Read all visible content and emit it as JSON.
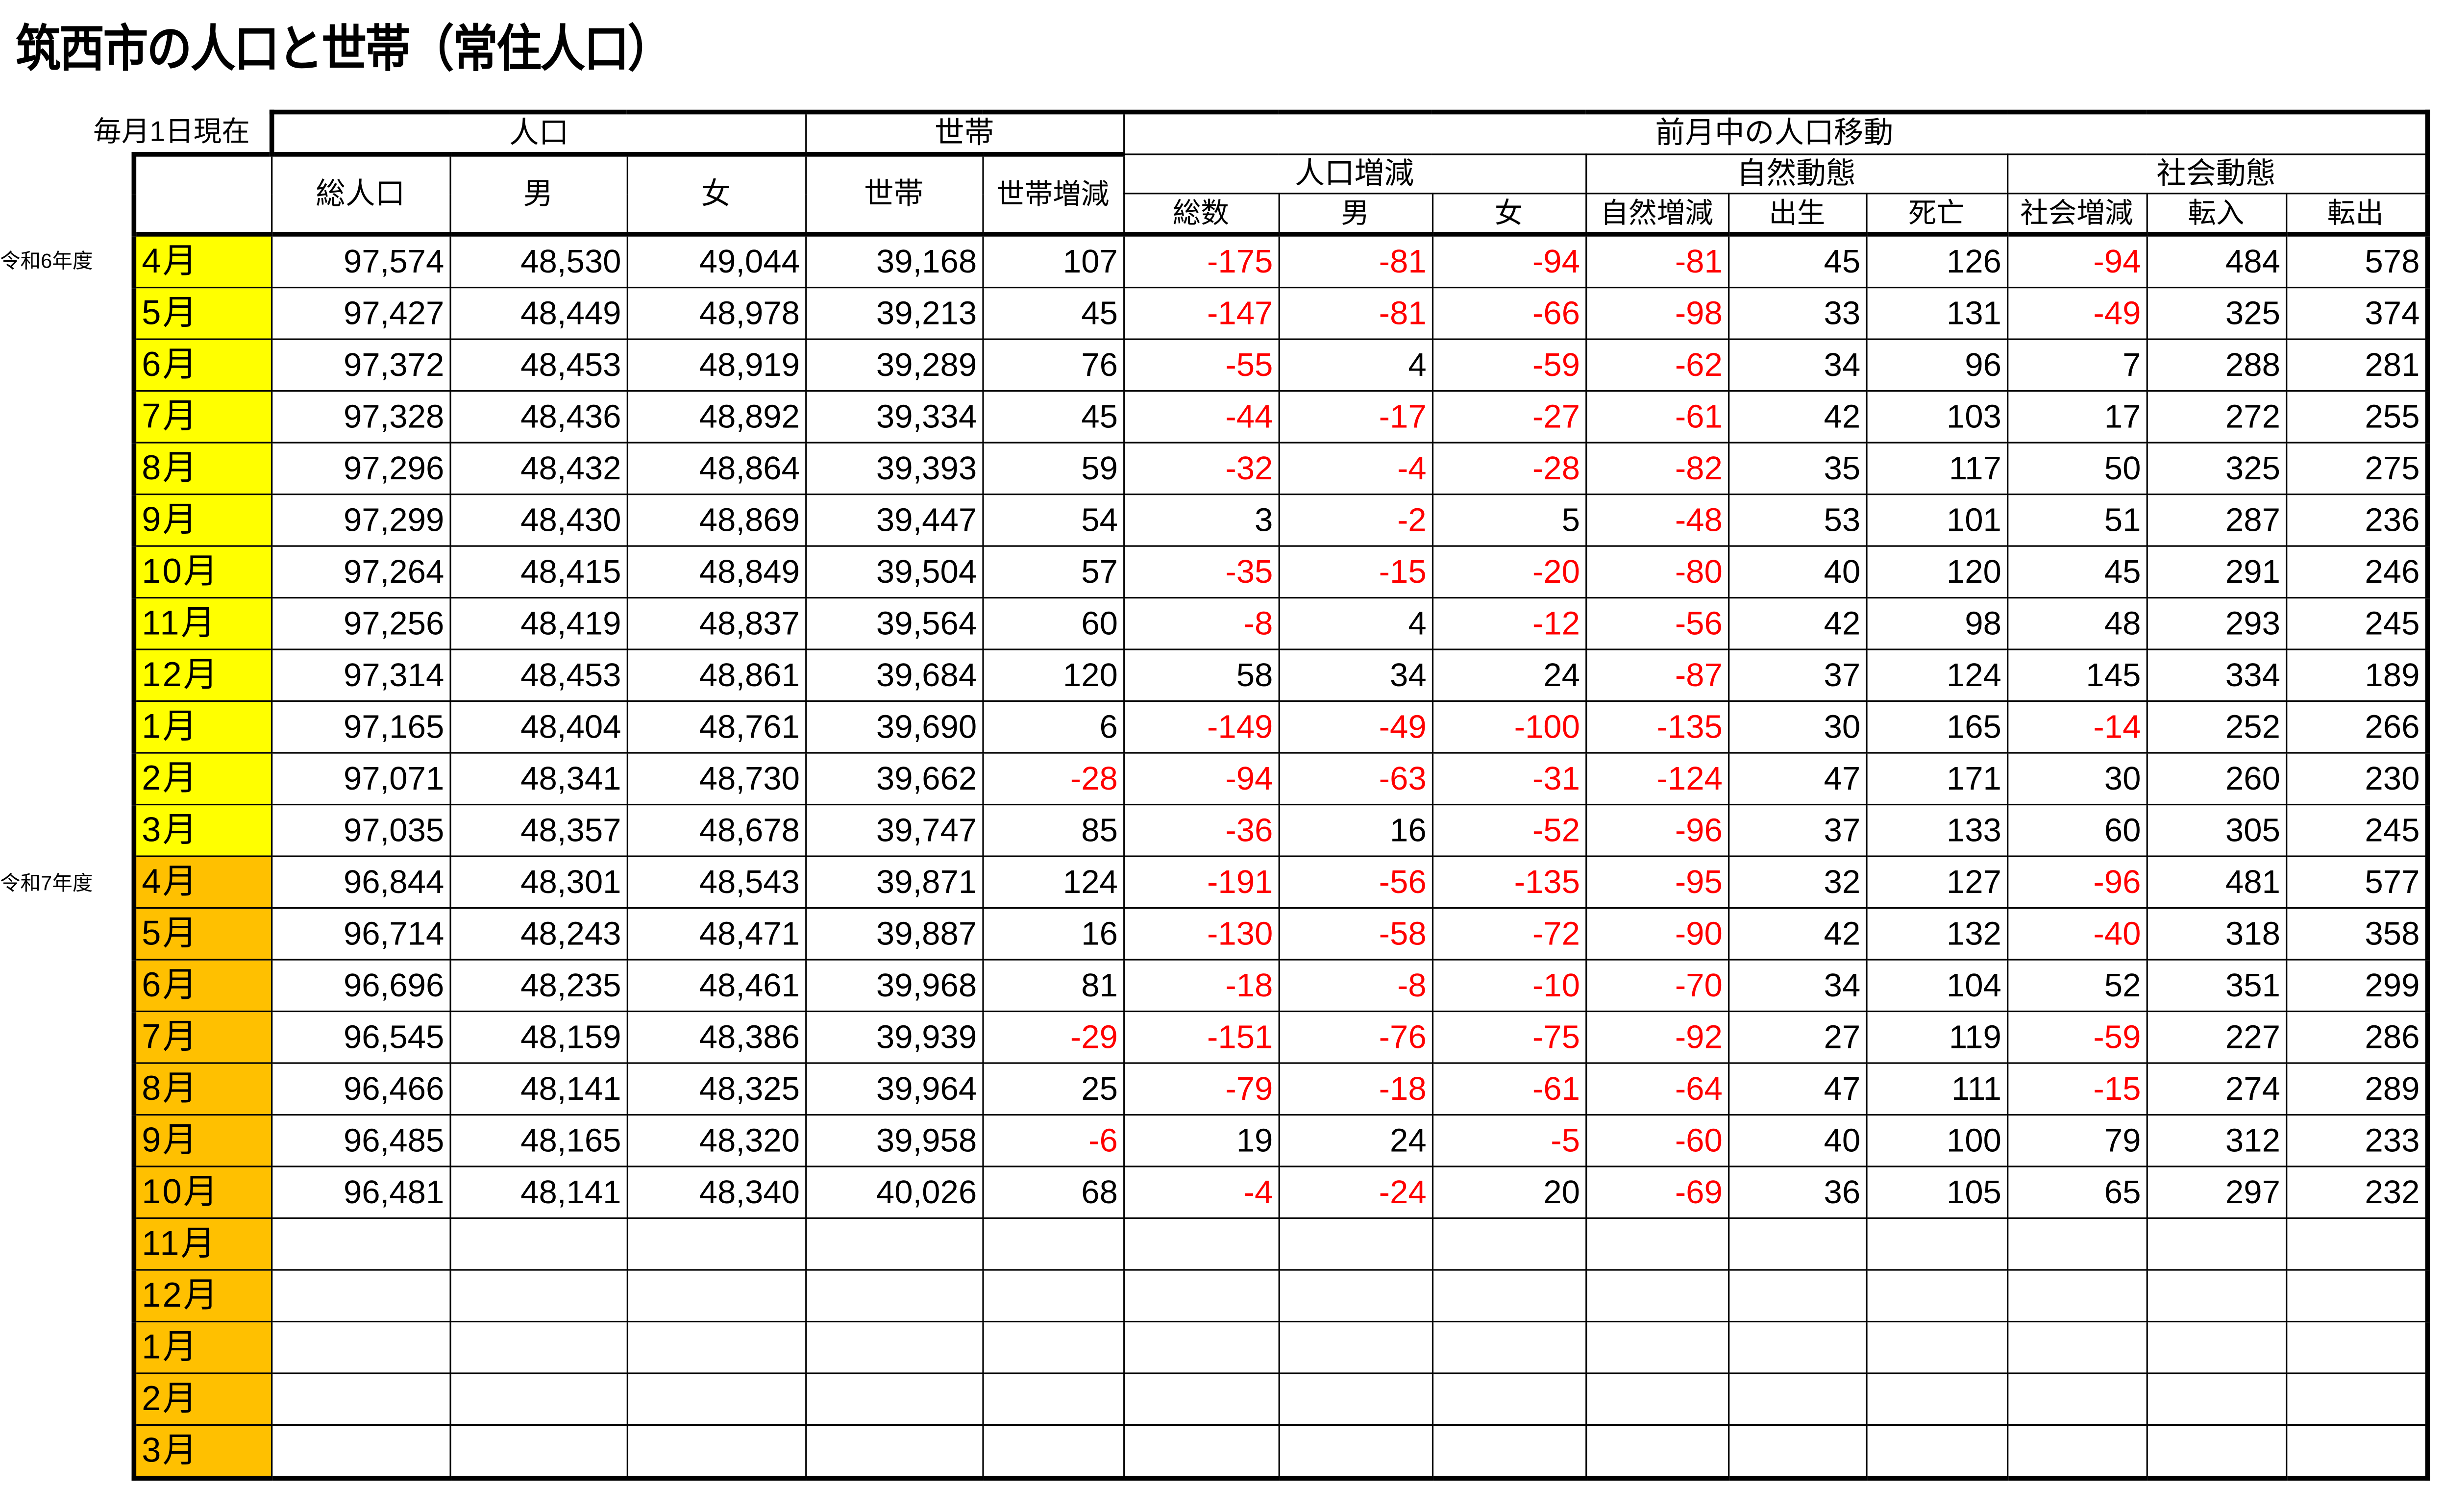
{
  "title": "筑西市の人口と世帯（常住人口）",
  "as_of": "毎月1日現在",
  "headers": {
    "population": "人口",
    "households": "世帯",
    "movement": "前月中の人口移動",
    "total_pop": "総人口",
    "male": "男",
    "female": "女",
    "household": "世帯",
    "household_change": "世帯増減",
    "pop_change": "人口増減",
    "natural": "自然動態",
    "social": "社会動態",
    "sub": [
      "総数",
      "男",
      "女",
      "自然増減",
      "出生",
      "死亡",
      "社会増減",
      "転入",
      "転出"
    ]
  },
  "colors": {
    "fy6_month_bg": "#ffff00",
    "fy7_month_bg": "#ffc000",
    "negative": "#ff0000"
  },
  "rows": [
    {
      "era": "令和6年度",
      "fy": 6,
      "month": "4月",
      "values": [
        "97,574",
        "48,530",
        "49,044",
        "39,168",
        "107",
        "-175",
        "-81",
        "-94",
        "-81",
        "45",
        "126",
        "-94",
        "484",
        "578"
      ]
    },
    {
      "fy": 6,
      "month": "5月",
      "values": [
        "97,427",
        "48,449",
        "48,978",
        "39,213",
        "45",
        "-147",
        "-81",
        "-66",
        "-98",
        "33",
        "131",
        "-49",
        "325",
        "374"
      ]
    },
    {
      "fy": 6,
      "month": "6月",
      "values": [
        "97,372",
        "48,453",
        "48,919",
        "39,289",
        "76",
        "-55",
        "4",
        "-59",
        "-62",
        "34",
        "96",
        "7",
        "288",
        "281"
      ]
    },
    {
      "fy": 6,
      "month": "7月",
      "values": [
        "97,328",
        "48,436",
        "48,892",
        "39,334",
        "45",
        "-44",
        "-17",
        "-27",
        "-61",
        "42",
        "103",
        "17",
        "272",
        "255"
      ]
    },
    {
      "fy": 6,
      "month": "8月",
      "values": [
        "97,296",
        "48,432",
        "48,864",
        "39,393",
        "59",
        "-32",
        "-4",
        "-28",
        "-82",
        "35",
        "117",
        "50",
        "325",
        "275"
      ]
    },
    {
      "fy": 6,
      "month": "9月",
      "values": [
        "97,299",
        "48,430",
        "48,869",
        "39,447",
        "54",
        "3",
        "-2",
        "5",
        "-48",
        "53",
        "101",
        "51",
        "287",
        "236"
      ]
    },
    {
      "fy": 6,
      "month": "10月",
      "values": [
        "97,264",
        "48,415",
        "48,849",
        "39,504",
        "57",
        "-35",
        "-15",
        "-20",
        "-80",
        "40",
        "120",
        "45",
        "291",
        "246"
      ]
    },
    {
      "fy": 6,
      "month": "11月",
      "values": [
        "97,256",
        "48,419",
        "48,837",
        "39,564",
        "60",
        "-8",
        "4",
        "-12",
        "-56",
        "42",
        "98",
        "48",
        "293",
        "245"
      ]
    },
    {
      "fy": 6,
      "month": "12月",
      "values": [
        "97,314",
        "48,453",
        "48,861",
        "39,684",
        "120",
        "58",
        "34",
        "24",
        "-87",
        "37",
        "124",
        "145",
        "334",
        "189"
      ]
    },
    {
      "fy": 6,
      "month": "1月",
      "values": [
        "97,165",
        "48,404",
        "48,761",
        "39,690",
        "6",
        "-149",
        "-49",
        "-100",
        "-135",
        "30",
        "165",
        "-14",
        "252",
        "266"
      ]
    },
    {
      "fy": 6,
      "month": "2月",
      "values": [
        "97,071",
        "48,341",
        "48,730",
        "39,662",
        "-28",
        "-94",
        "-63",
        "-31",
        "-124",
        "47",
        "171",
        "30",
        "260",
        "230"
      ]
    },
    {
      "fy": 6,
      "month": "3月",
      "values": [
        "97,035",
        "48,357",
        "48,678",
        "39,747",
        "85",
        "-36",
        "16",
        "-52",
        "-96",
        "37",
        "133",
        "60",
        "305",
        "245"
      ]
    },
    {
      "era": "令和7年度",
      "fy": 7,
      "month": "4月",
      "values": [
        "96,844",
        "48,301",
        "48,543",
        "39,871",
        "124",
        "-191",
        "-56",
        "-135",
        "-95",
        "32",
        "127",
        "-96",
        "481",
        "577"
      ]
    },
    {
      "fy": 7,
      "month": "5月",
      "values": [
        "96,714",
        "48,243",
        "48,471",
        "39,887",
        "16",
        "-130",
        "-58",
        "-72",
        "-90",
        "42",
        "132",
        "-40",
        "318",
        "358"
      ]
    },
    {
      "fy": 7,
      "month": "6月",
      "values": [
        "96,696",
        "48,235",
        "48,461",
        "39,968",
        "81",
        "-18",
        "-8",
        "-10",
        "-70",
        "34",
        "104",
        "52",
        "351",
        "299"
      ]
    },
    {
      "fy": 7,
      "month": "7月",
      "values": [
        "96,545",
        "48,159",
        "48,386",
        "39,939",
        "-29",
        "-151",
        "-76",
        "-75",
        "-92",
        "27",
        "119",
        "-59",
        "227",
        "286"
      ]
    },
    {
      "fy": 7,
      "month": "8月",
      "values": [
        "96,466",
        "48,141",
        "48,325",
        "39,964",
        "25",
        "-79",
        "-18",
        "-61",
        "-64",
        "47",
        "111",
        "-15",
        "274",
        "289"
      ]
    },
    {
      "fy": 7,
      "month": "9月",
      "values": [
        "96,485",
        "48,165",
        "48,320",
        "39,958",
        "-6",
        "19",
        "24",
        "-5",
        "-60",
        "40",
        "100",
        "79",
        "312",
        "233"
      ]
    },
    {
      "fy": 7,
      "month": "10月",
      "values": [
        "96,481",
        "48,141",
        "48,340",
        "40,026",
        "68",
        "-4",
        "-24",
        "20",
        "-69",
        "36",
        "105",
        "65",
        "297",
        "232"
      ]
    },
    {
      "fy": 7,
      "month": "11月",
      "values": [
        "",
        "",
        "",
        "",
        "",
        "",
        "",
        "",
        "",
        "",
        "",
        "",
        "",
        ""
      ]
    },
    {
      "fy": 7,
      "month": "12月",
      "values": [
        "",
        "",
        "",
        "",
        "",
        "",
        "",
        "",
        "",
        "",
        "",
        "",
        "",
        ""
      ]
    },
    {
      "fy": 7,
      "month": "1月",
      "values": [
        "",
        "",
        "",
        "",
        "",
        "",
        "",
        "",
        "",
        "",
        "",
        "",
        "",
        ""
      ]
    },
    {
      "fy": 7,
      "month": "2月",
      "values": [
        "",
        "",
        "",
        "",
        "",
        "",
        "",
        "",
        "",
        "",
        "",
        "",
        "",
        ""
      ]
    },
    {
      "fy": 7,
      "month": "3月",
      "values": [
        "",
        "",
        "",
        "",
        "",
        "",
        "",
        "",
        "",
        "",
        "",
        "",
        "",
        ""
      ]
    }
  ]
}
